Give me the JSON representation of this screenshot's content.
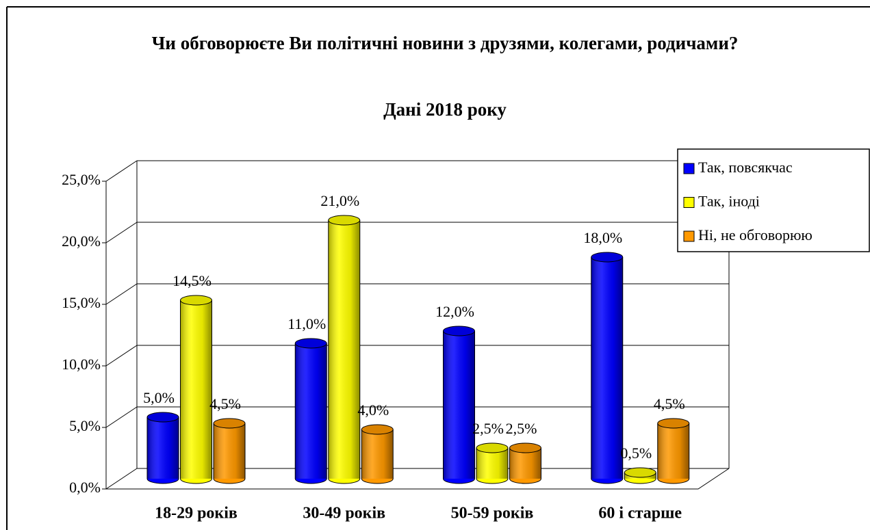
{
  "chart_data": {
    "type": "bar3d",
    "title": "Чи обговорюєте Ви політичні новини з друзями, колегами, родичами?",
    "subtitle": "Дані 2018 року",
    "categories": [
      "18-29 років",
      "30-49 років",
      "50-59 років",
      "60 і старше"
    ],
    "series": [
      {
        "name": "Так, повсякчас",
        "color": "#0000ff",
        "values": [
          5.0,
          11.0,
          12.0,
          18.0
        ],
        "value_labels": [
          "5,0%",
          "11,0%",
          "12,0%",
          "18,0%"
        ]
      },
      {
        "name": "Так, іноді",
        "color": "#ffff00",
        "values": [
          14.5,
          21.0,
          2.5,
          0.5
        ],
        "value_labels": [
          "14,5%",
          "21,0%",
          "2,5%",
          "0,5%"
        ]
      },
      {
        "name": "Ні, не обговорюю",
        "color": "#ff9900",
        "values": [
          4.5,
          4.0,
          2.5,
          4.5
        ],
        "value_labels": [
          "4,5%",
          "4,0%",
          "2,5%",
          "4,5%"
        ]
      }
    ],
    "ylim": [
      0,
      25
    ],
    "yticks": [
      {
        "value": 0,
        "label": "0,0%"
      },
      {
        "value": 5,
        "label": "5,0%"
      },
      {
        "value": 10,
        "label": "10,0%"
      },
      {
        "value": 15,
        "label": "15,0%"
      },
      {
        "value": 20,
        "label": "20,0%"
      },
      {
        "value": 25,
        "label": "25,0%"
      }
    ],
    "grid": true,
    "legend": "right"
  }
}
